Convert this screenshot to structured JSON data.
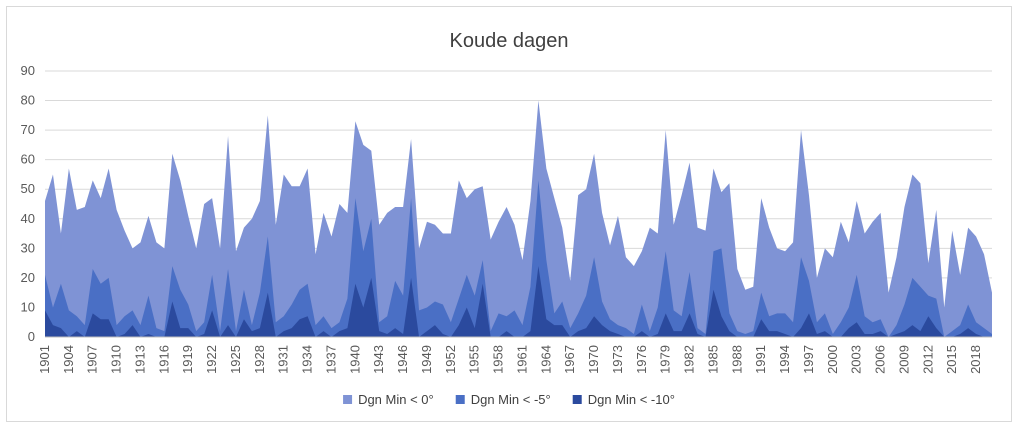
{
  "chart_data": {
    "type": "area",
    "title": "Koude dagen",
    "xlabel": "",
    "ylabel": "",
    "ylim": [
      0,
      90
    ],
    "yticks": [
      0,
      10,
      20,
      30,
      40,
      50,
      60,
      70,
      80,
      90
    ],
    "grid": true,
    "legend_position": "bottom",
    "stacked": false,
    "x": [
      1901,
      1902,
      1903,
      1904,
      1905,
      1906,
      1907,
      1908,
      1909,
      1910,
      1911,
      1912,
      1913,
      1914,
      1915,
      1916,
      1917,
      1918,
      1919,
      1920,
      1921,
      1922,
      1923,
      1924,
      1925,
      1926,
      1927,
      1928,
      1929,
      1930,
      1931,
      1932,
      1933,
      1934,
      1935,
      1936,
      1937,
      1938,
      1939,
      1940,
      1941,
      1942,
      1943,
      1944,
      1945,
      1946,
      1947,
      1948,
      1949,
      1950,
      1951,
      1952,
      1953,
      1954,
      1955,
      1956,
      1957,
      1958,
      1959,
      1960,
      1961,
      1962,
      1963,
      1964,
      1965,
      1966,
      1967,
      1968,
      1969,
      1970,
      1971,
      1972,
      1973,
      1974,
      1975,
      1976,
      1977,
      1978,
      1979,
      1980,
      1981,
      1982,
      1983,
      1984,
      1985,
      1986,
      1987,
      1988,
      1989,
      1990,
      1991,
      1992,
      1993,
      1994,
      1995,
      1996,
      1997,
      1998,
      1999,
      2000,
      2001,
      2002,
      2003,
      2004,
      2005,
      2006,
      2007,
      2008,
      2009,
      2010,
      2011,
      2012,
      2013,
      2014,
      2015,
      2016,
      2017,
      2018,
      2019,
      2020
    ],
    "xtick_labels": [
      "1901",
      "1904",
      "1907",
      "1910",
      "1913",
      "1916",
      "1919",
      "1922",
      "1925",
      "1928",
      "1931",
      "1934",
      "1937",
      "1940",
      "1943",
      "1946",
      "1949",
      "1952",
      "1955",
      "1958",
      "1961",
      "1964",
      "1967",
      "1970",
      "1973",
      "1976",
      "1979",
      "1982",
      "1985",
      "1988",
      "1991",
      "1994",
      "1997",
      "2000",
      "2003",
      "2006",
      "2009",
      "2012",
      "2015",
      "2018"
    ],
    "series": [
      {
        "name": "Dgn Min < 0°",
        "color": "#7f93d5",
        "values": [
          46,
          55,
          35,
          57,
          43,
          44,
          53,
          47,
          57,
          43,
          36,
          30,
          32,
          41,
          32,
          30,
          62,
          53,
          41,
          30,
          45,
          47,
          30,
          68,
          29,
          37,
          40,
          46,
          75,
          38,
          55,
          51,
          51,
          57,
          28,
          42,
          34,
          45,
          42,
          73,
          65,
          63,
          38,
          42,
          44,
          44,
          67,
          30,
          39,
          38,
          35,
          35,
          53,
          47,
          50,
          51,
          33,
          39,
          44,
          38,
          26,
          46,
          80,
          57,
          47,
          37,
          19,
          48,
          50,
          62,
          42,
          31,
          41,
          27,
          24,
          29,
          37,
          35,
          70,
          38,
          48,
          59,
          37,
          36,
          57,
          49,
          52,
          23,
          16,
          17,
          47,
          37,
          30,
          29,
          32,
          70,
          48,
          20,
          30,
          27,
          39,
          32,
          46,
          35,
          39,
          42,
          15,
          27,
          44,
          55,
          52,
          25,
          43,
          10,
          36,
          21,
          37,
          34,
          28,
          15
        ]
      },
      {
        "name": "Dgn Min < -5°",
        "color": "#4a6fc5",
        "values": [
          21,
          10,
          18,
          9,
          7,
          4,
          23,
          18,
          20,
          4,
          7,
          9,
          4,
          14,
          3,
          2,
          24,
          16,
          11,
          2,
          5,
          21,
          2,
          23,
          2,
          16,
          4,
          15,
          34,
          5,
          7,
          11,
          16,
          18,
          4,
          7,
          3,
          5,
          13,
          47,
          29,
          40,
          5,
          7,
          19,
          14,
          47,
          9,
          10,
          12,
          11,
          5,
          13,
          21,
          14,
          26,
          2,
          8,
          7,
          9,
          4,
          17,
          53,
          26,
          8,
          12,
          3,
          8,
          14,
          27,
          12,
          6,
          4,
          3,
          1,
          11,
          2,
          10,
          29,
          9,
          7,
          22,
          3,
          1,
          29,
          30,
          8,
          2,
          1,
          2,
          15,
          7,
          8,
          8,
          5,
          27,
          19,
          5,
          8,
          1,
          5,
          10,
          21,
          7,
          5,
          6,
          0,
          4,
          11,
          20,
          17,
          14,
          13,
          0,
          2,
          4,
          11,
          5,
          3,
          1
        ]
      },
      {
        "name": "Dgn Min < -10°",
        "color": "#2b4a9e",
        "values": [
          9,
          4,
          3,
          0,
          2,
          0,
          8,
          6,
          6,
          0,
          1,
          4,
          0,
          1,
          0,
          0,
          12,
          3,
          3,
          0,
          1,
          9,
          0,
          4,
          0,
          6,
          2,
          3,
          15,
          0,
          2,
          3,
          6,
          7,
          0,
          2,
          0,
          2,
          3,
          18,
          10,
          20,
          2,
          1,
          3,
          1,
          20,
          0,
          2,
          4,
          1,
          0,
          4,
          10,
          3,
          18,
          0,
          0,
          2,
          0,
          0,
          2,
          24,
          6,
          4,
          4,
          0,
          2,
          3,
          7,
          4,
          2,
          1,
          0,
          0,
          2,
          0,
          1,
          8,
          2,
          2,
          8,
          1,
          0,
          16,
          7,
          2,
          0,
          0,
          0,
          6,
          2,
          2,
          1,
          0,
          3,
          8,
          1,
          2,
          0,
          0,
          3,
          5,
          1,
          1,
          2,
          0,
          1,
          2,
          4,
          2,
          7,
          3,
          0,
          0,
          1,
          3,
          1,
          0,
          0
        ]
      }
    ]
  }
}
